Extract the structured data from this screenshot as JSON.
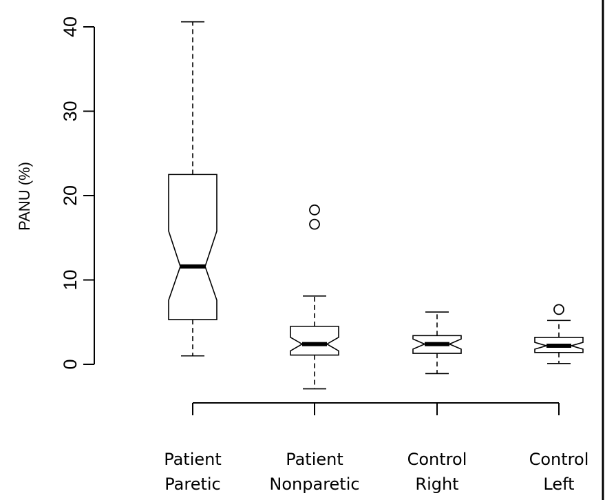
{
  "chart_data": {
    "type": "boxplot",
    "ylabel": "PANU (%)",
    "xlabel": "",
    "ylim": [
      -4.5,
      42
    ],
    "yticks": [
      0,
      10,
      20,
      30,
      40
    ],
    "notched": true,
    "categories": [
      {
        "line1": "Patient",
        "line2": "Paretic"
      },
      {
        "line1": "Patient",
        "line2": "Nonparetic"
      },
      {
        "line1": "Control",
        "line2": "Right"
      },
      {
        "line1": "Control",
        "line2": "Left"
      }
    ],
    "boxes": [
      {
        "whisker_low": 1.0,
        "q1": 5.3,
        "notch_low": 7.6,
        "median": 11.6,
        "notch_high": 15.8,
        "q3": 22.5,
        "whisker_high": 40.6,
        "outliers": []
      },
      {
        "whisker_low": -2.9,
        "q1": 1.1,
        "notch_low": 1.6,
        "median": 2.4,
        "notch_high": 3.2,
        "q3": 4.5,
        "whisker_high": 8.1,
        "outliers": [
          16.6,
          18.3
        ]
      },
      {
        "whisker_low": -1.1,
        "q1": 1.3,
        "notch_low": 1.8,
        "median": 2.4,
        "notch_high": 3.0,
        "q3": 3.4,
        "whisker_high": 6.2,
        "outliers": []
      },
      {
        "whisker_low": 0.1,
        "q1": 1.4,
        "notch_low": 1.8,
        "median": 2.2,
        "notch_high": 2.6,
        "q3": 3.2,
        "whisker_high": 5.2,
        "outliers": [
          6.5
        ]
      }
    ]
  }
}
